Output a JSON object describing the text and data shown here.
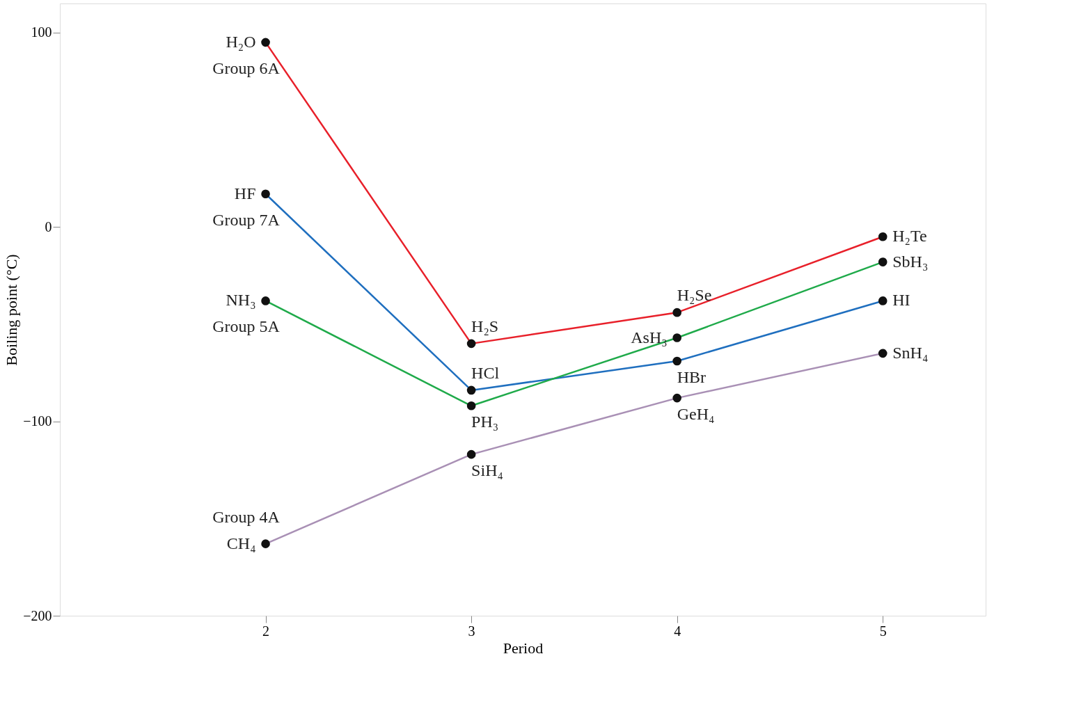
{
  "chart_data": {
    "type": "line",
    "xlabel": "Period",
    "ylabel": "Boiling point (°C)",
    "x": [
      2,
      3,
      4,
      5
    ],
    "series": [
      {
        "name": "Group 6A",
        "color": "#e8202a",
        "values": [
          95,
          -60,
          -44,
          -5
        ]
      },
      {
        "name": "Group 7A",
        "color": "#1f6fbf",
        "values": [
          17,
          -84,
          -69,
          -38
        ]
      },
      {
        "name": "Group 5A",
        "color": "#1faa4a",
        "values": [
          -38,
          -92,
          -57,
          -18
        ]
      },
      {
        "name": "Group 4A",
        "color": "#a990b5",
        "values": [
          -163,
          -117,
          -88,
          -65
        ]
      }
    ],
    "annotations": [
      {
        "text": "H₂O",
        "x": 2,
        "y": 95
      },
      {
        "text": "H₂S",
        "x": 3,
        "y": -60
      },
      {
        "text": "H₂Se",
        "x": 4,
        "y": -44
      },
      {
        "text": "H₂Te",
        "x": 5,
        "y": -5
      },
      {
        "text": "HF",
        "x": 2,
        "y": 17
      },
      {
        "text": "HCl",
        "x": 3,
        "y": -84
      },
      {
        "text": "HBr",
        "x": 4,
        "y": -69
      },
      {
        "text": "HI",
        "x": 5,
        "y": -38
      },
      {
        "text": "NH₃",
        "x": 2,
        "y": -38
      },
      {
        "text": "PH₃",
        "x": 3,
        "y": -92
      },
      {
        "text": "AsH₃",
        "x": 4,
        "y": -57
      },
      {
        "text": "SbH₃",
        "x": 5,
        "y": -18
      },
      {
        "text": "CH₄",
        "x": 2,
        "y": -163
      },
      {
        "text": "SiH₄",
        "x": 3,
        "y": -117
      },
      {
        "text": "GeH₄",
        "x": 4,
        "y": -88
      },
      {
        "text": "SnH₄",
        "x": 5,
        "y": -65
      }
    ],
    "xlim": [
      1,
      5.5
    ],
    "ylim": [
      -200,
      115
    ],
    "xticks": [
      2,
      3,
      4,
      5
    ],
    "yticks": [
      -200,
      -100,
      0,
      100
    ],
    "marker": "circle",
    "line_style": "solid",
    "grid": false
  }
}
